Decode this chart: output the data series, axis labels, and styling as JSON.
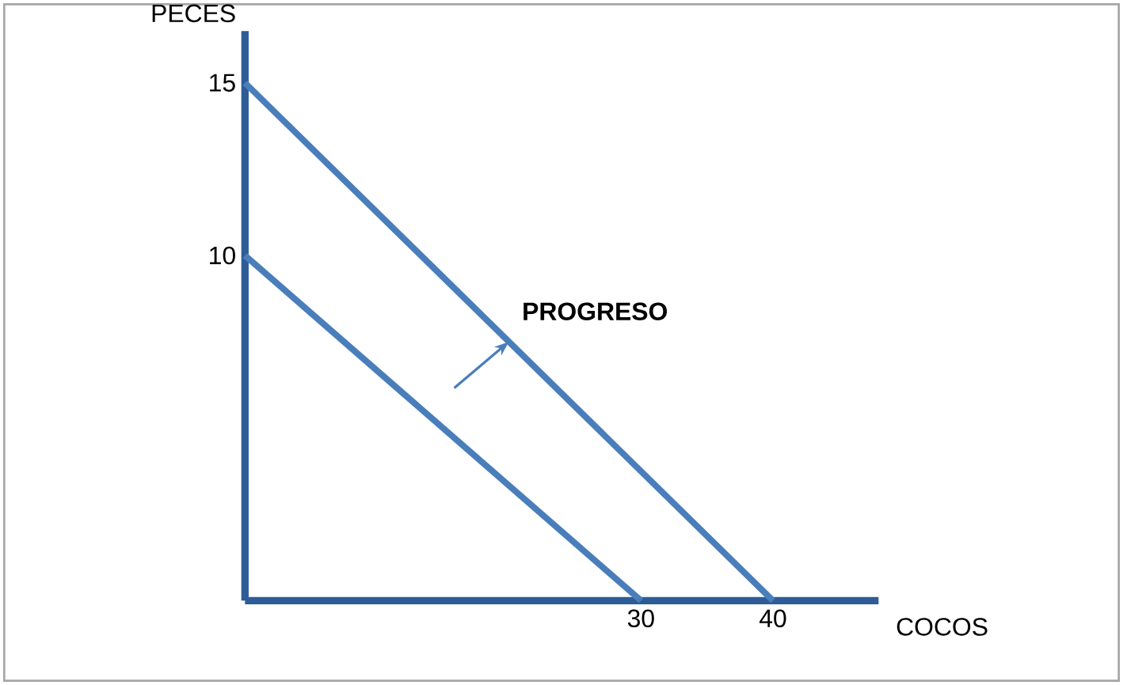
{
  "chart_data": {
    "type": "line",
    "xlabel": "COCOS",
    "ylabel": "PECES",
    "xlim": [
      0,
      48
    ],
    "ylim": [
      0,
      16.5
    ],
    "xticks": [
      30,
      40
    ],
    "yticks": [
      10,
      15
    ],
    "series": [
      {
        "color": "#4a7ebb",
        "x": [
          0,
          30
        ],
        "values": [
          10,
          0
        ]
      },
      {
        "color": "#4a7ebb",
        "x": [
          0,
          40
        ],
        "values": [
          15,
          0
        ]
      }
    ],
    "annotations": [
      {
        "text": "PROGRESO",
        "x": 20,
        "y": 7.5
      }
    ],
    "marker": "none",
    "line_style": "solid"
  }
}
